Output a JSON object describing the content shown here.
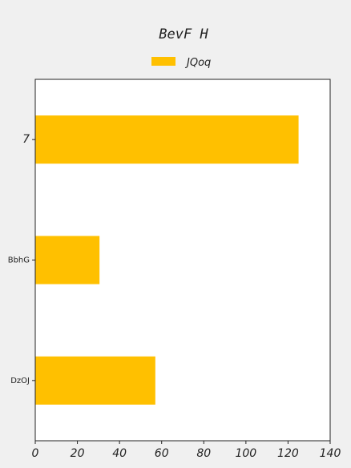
{
  "chart_data": {
    "type": "bar",
    "orientation": "horizontal",
    "title": "BevF H",
    "categories": [
      "7",
      "BbhG",
      "DzOJ"
    ],
    "series": [
      {
        "name": "JQoq",
        "values": [
          125,
          30.5,
          57
        ]
      }
    ],
    "xlim": [
      0,
      140
    ],
    "xticks": [
      0,
      20,
      40,
      60,
      80,
      100,
      120,
      140
    ],
    "xlabel": "",
    "ylabel": "",
    "grid": false,
    "legend_position": "top-center",
    "colors": {
      "bar": "#ffc000",
      "background": "#f0f0f0",
      "plot_background": "#ffffff",
      "axis": "#222222"
    }
  }
}
